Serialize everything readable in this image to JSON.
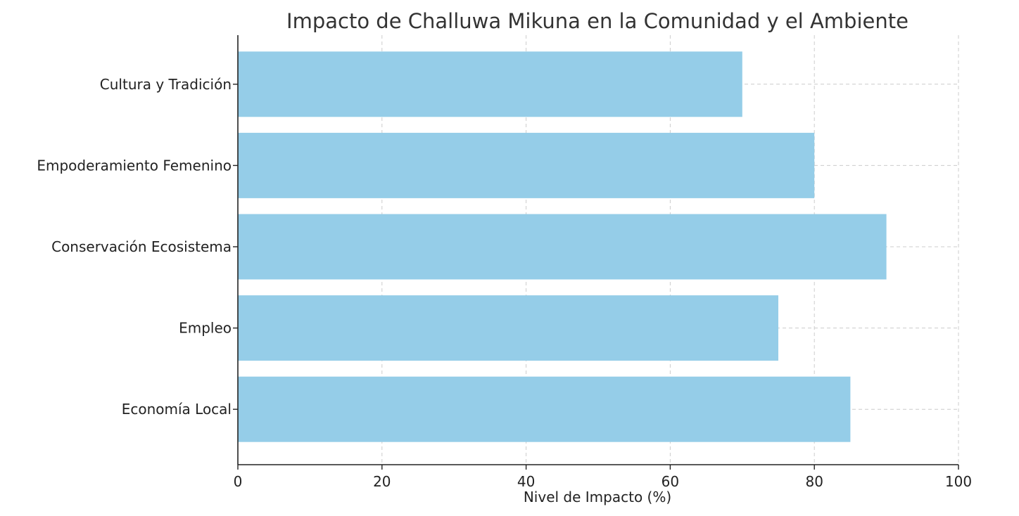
{
  "chart_data": {
    "type": "bar",
    "orientation": "horizontal",
    "title": "Impacto de Challuwa Mikuna en la Comunidad y el Ambiente",
    "xlabel": "Nivel de Impacto (%)",
    "ylabel": "",
    "categories": [
      "Economía Local",
      "Empleo",
      "Conservación Ecosistema",
      "Empoderamiento Femenino",
      "Cultura y Tradición"
    ],
    "values": [
      85,
      75,
      90,
      80,
      70
    ],
    "xlim": [
      0,
      100
    ],
    "xticks": [
      0,
      20,
      40,
      60,
      80,
      100
    ],
    "bar_color": "#95cde8",
    "grid": true
  }
}
